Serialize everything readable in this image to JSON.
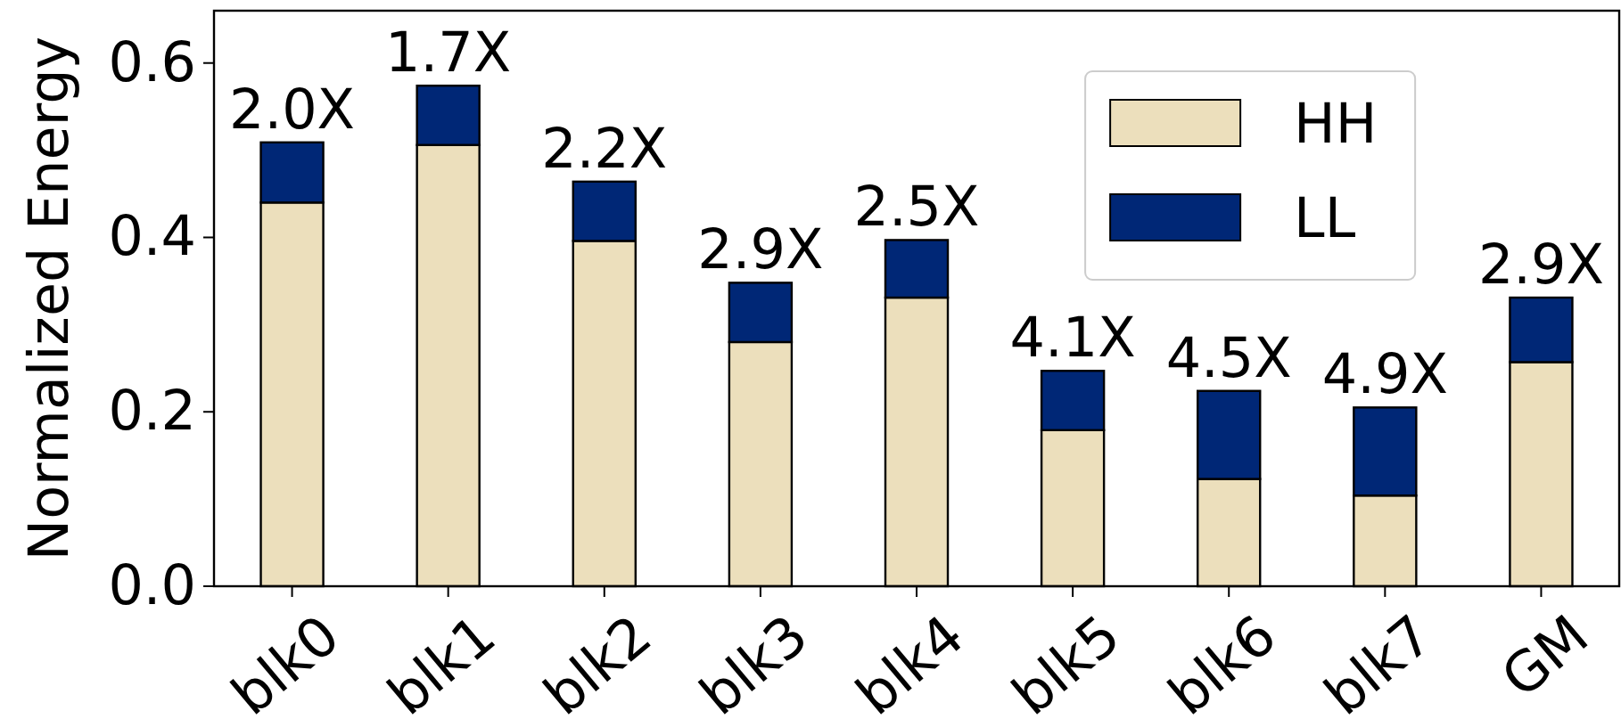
{
  "chart_data": {
    "type": "bar",
    "stacked": true,
    "ylabel": "Normalized Energy",
    "categories": [
      "blk0",
      "blk1",
      "blk2",
      "blk3",
      "blk4",
      "blk5",
      "blk6",
      "blk7",
      "GM"
    ],
    "series": [
      {
        "name": "HH",
        "color": "#ecdfbc",
        "values": [
          0.44,
          0.506,
          0.396,
          0.28,
          0.331,
          0.179,
          0.123,
          0.104,
          0.257
        ]
      },
      {
        "name": "LL",
        "color": "#002776",
        "values": [
          0.069,
          0.068,
          0.068,
          0.068,
          0.066,
          0.068,
          0.101,
          0.101,
          0.074
        ]
      }
    ],
    "ylim": [
      0,
      0.66
    ],
    "yticks": [
      {
        "value": 0,
        "label": "0.0"
      },
      {
        "value": 0.2,
        "label": "0.2"
      },
      {
        "value": 0.4,
        "label": "0.4"
      },
      {
        "value": 0.6,
        "label": "0.6"
      }
    ],
    "legend": "top right",
    "grid": false,
    "annotations": [
      {
        "text": "2.0X",
        "x": "blk0",
        "y": 0.509
      },
      {
        "text": "1.7X",
        "x": "blk1",
        "y": 0.574
      },
      {
        "text": "2.2X",
        "x": "blk2",
        "y": 0.464
      },
      {
        "text": "2.9X",
        "x": "blk3",
        "y": 0.348
      },
      {
        "text": "2.5X",
        "x": "blk4",
        "y": 0.397
      },
      {
        "text": "4.1X",
        "x": "blk5",
        "y": 0.247
      },
      {
        "text": "4.5X",
        "x": "blk6",
        "y": 0.224
      },
      {
        "text": "4.9X",
        "x": "blk7",
        "y": 0.205
      },
      {
        "text": "2.9X",
        "x": "GM",
        "y": 0.331
      }
    ]
  }
}
